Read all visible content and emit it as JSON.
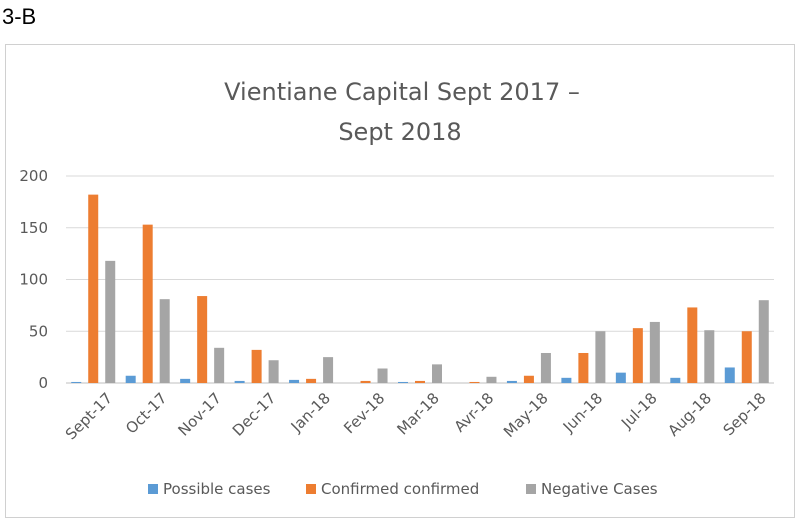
{
  "panel_label": "3-B",
  "chart_data": {
    "type": "bar",
    "title_lines": [
      "Vientiane Capital Sept 2017 –",
      "Sept 2018"
    ],
    "categories": [
      "Sept-17",
      "Oct-17",
      "Nov-17",
      "Dec-17",
      "Jan-18",
      "Fev-18",
      "Mar-18",
      "Avr-18",
      "May-18",
      "Jun-18",
      "Jul-18",
      "Aug-18",
      "Sep-18"
    ],
    "series": [
      {
        "name": "Possible cases",
        "color": "#5B9BD5",
        "values": [
          1,
          7,
          4,
          2,
          3,
          0,
          1,
          0,
          2,
          5,
          10,
          5,
          15
        ]
      },
      {
        "name": "Confirmed confirmed",
        "color": "#ED7D31",
        "values": [
          182,
          153,
          84,
          32,
          4,
          2,
          2,
          1,
          7,
          29,
          53,
          73,
          50
        ]
      },
      {
        "name": "Negative Cases",
        "color": "#A5A5A5",
        "values": [
          118,
          81,
          34,
          22,
          25,
          14,
          18,
          6,
          29,
          50,
          59,
          51,
          80
        ]
      }
    ],
    "ylim": [
      0,
      200
    ],
    "yticks": [
      0,
      50,
      100,
      150,
      200
    ],
    "grid": true,
    "legend_position": "bottom"
  }
}
